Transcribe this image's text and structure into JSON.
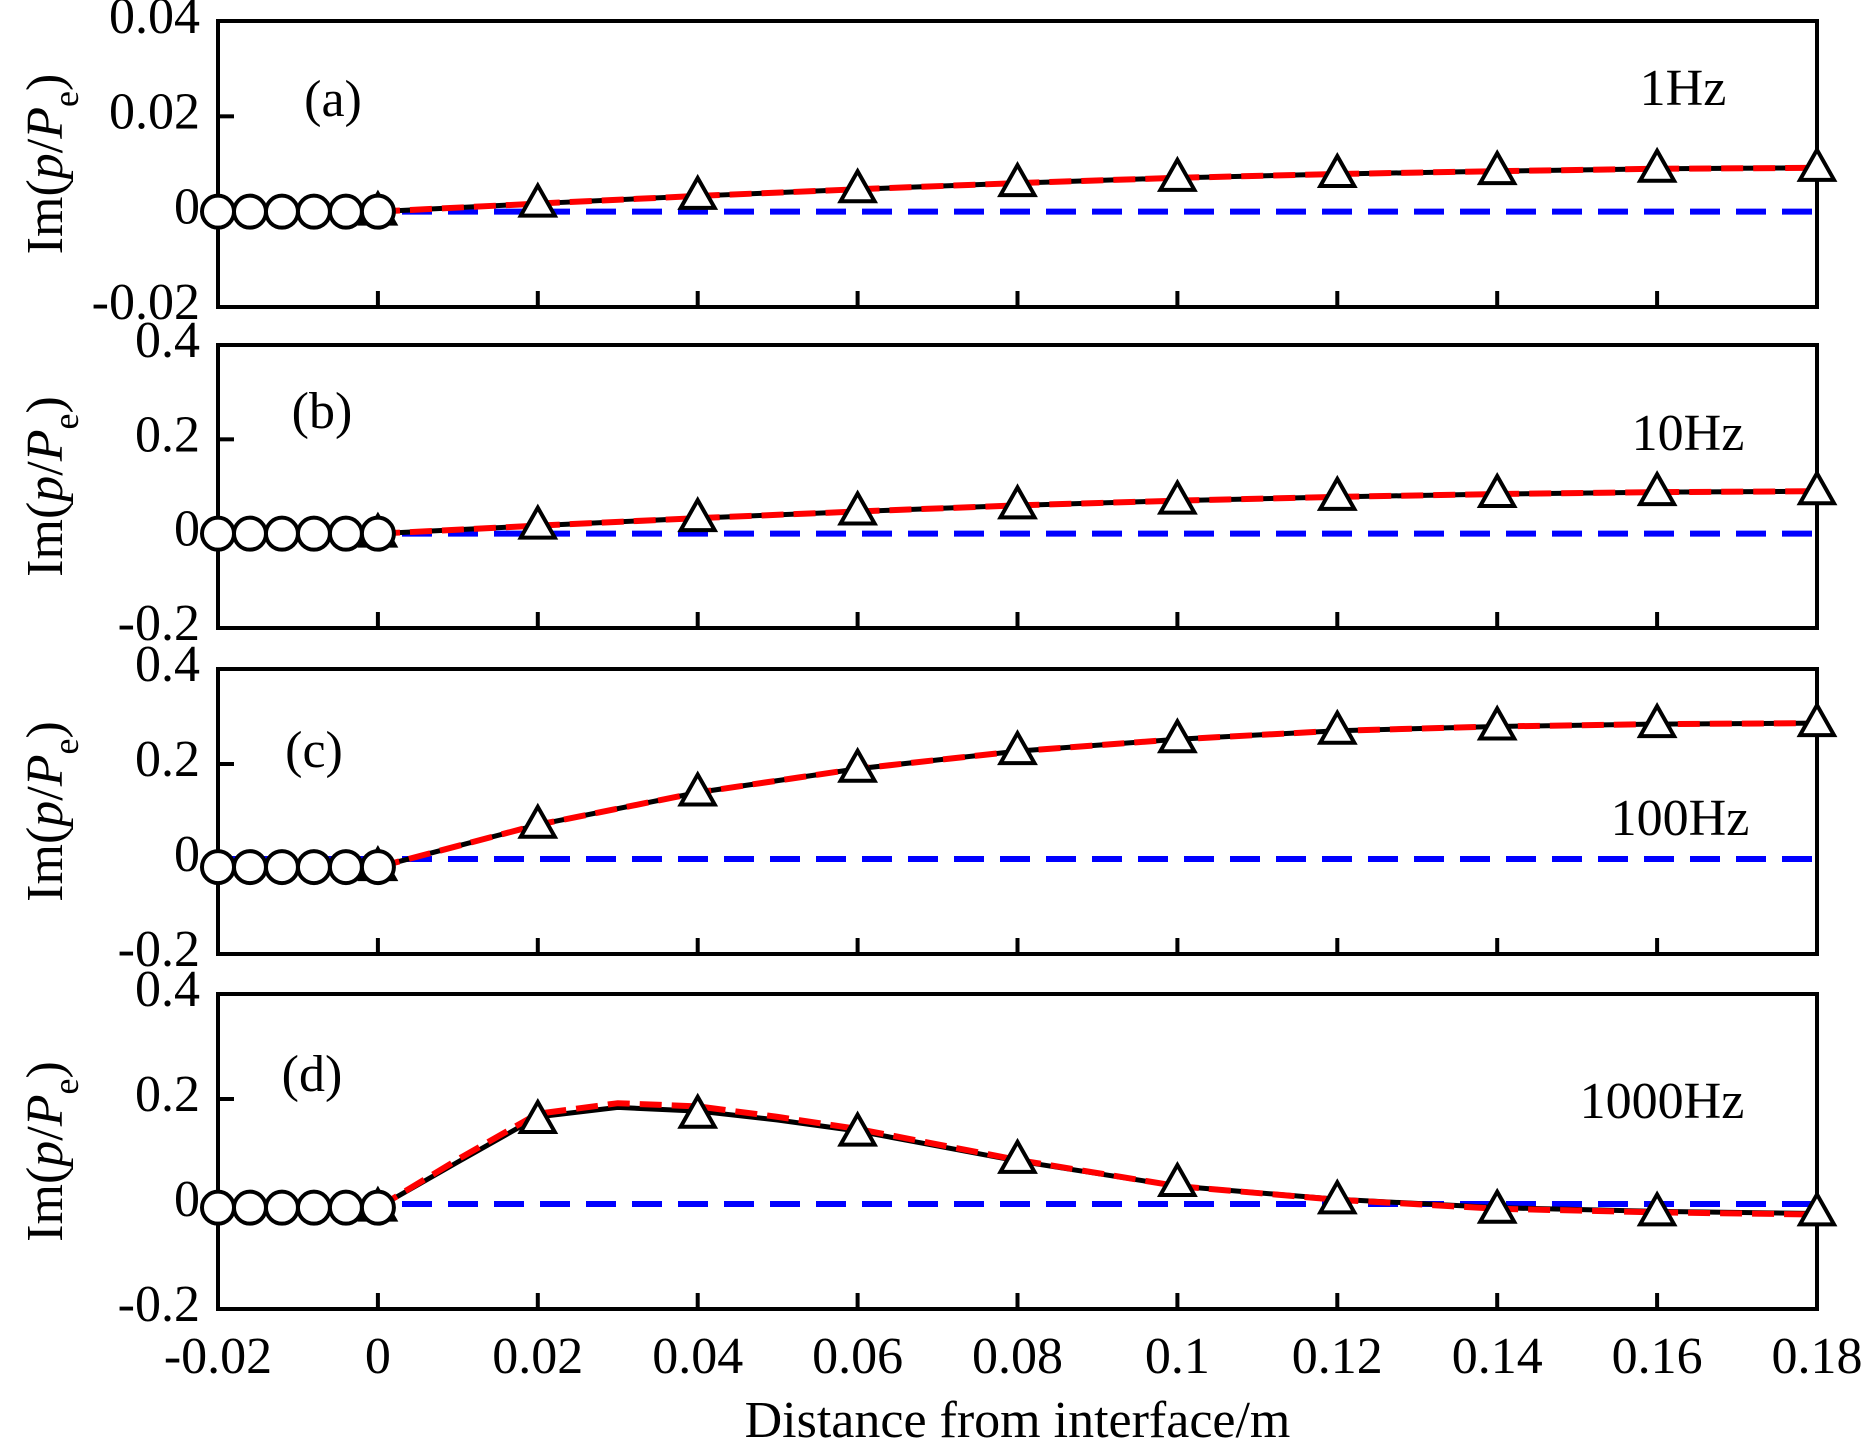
{
  "chart_data": [
    {
      "type": "line",
      "annotation": "(a)",
      "frequency": "1Hz",
      "ylabel_parts": [
        "Im(",
        "p",
        "/",
        "P",
        "e",
        ")"
      ],
      "xlim": [
        -0.02,
        0.18
      ],
      "xticks": [
        -0.02,
        0,
        0.02,
        0.04,
        0.06,
        0.08,
        0.1,
        0.12,
        0.14,
        0.16,
        0.18
      ],
      "ylim": [
        -0.02,
        0.04
      ],
      "yticks": [
        -0.02,
        0,
        0.02,
        0.04
      ],
      "series": [
        {
          "color": "#0000ff",
          "style": "dashed",
          "x": [
            -0.02,
            0.18
          ],
          "values": [
            0,
            0
          ]
        },
        {
          "color": "#000000",
          "style": "solid",
          "x": [
            -0.02,
            0,
            0.02,
            0.04,
            0.06,
            0.08,
            0.1,
            0.12,
            0.14,
            0.16,
            0.18
          ],
          "values": [
            0,
            0,
            0.0017,
            0.0033,
            0.0047,
            0.006,
            0.0071,
            0.0079,
            0.0085,
            0.009,
            0.0092
          ]
        },
        {
          "color": "#ff0000",
          "style": "dashed",
          "x": [
            -0.02,
            0,
            0.02,
            0.04,
            0.06,
            0.08,
            0.1,
            0.12,
            0.14,
            0.16,
            0.18
          ],
          "values": [
            0,
            0,
            0.0017,
            0.0033,
            0.0047,
            0.006,
            0.0071,
            0.0079,
            0.0085,
            0.009,
            0.0092
          ]
        },
        {
          "color": "#000000",
          "style": "markers",
          "marker": "triangle",
          "x": [
            0,
            0.02,
            0.04,
            0.06,
            0.08,
            0.1,
            0.12,
            0.14,
            0.16,
            0.18
          ],
          "values": [
            0,
            0.0017,
            0.0033,
            0.0047,
            0.006,
            0.0071,
            0.0079,
            0.0085,
            0.009,
            0.0092
          ]
        },
        {
          "color": "#000000",
          "style": "markers",
          "marker": "circle",
          "x": [
            -0.02,
            -0.016,
            -0.012,
            -0.008,
            -0.004,
            0
          ],
          "values": [
            0,
            0,
            0,
            0,
            0,
            0
          ]
        }
      ]
    },
    {
      "type": "line",
      "annotation": "(b)",
      "frequency": "10Hz",
      "ylabel_parts": [
        "Im(",
        "p",
        "/",
        "P",
        "e",
        ")"
      ],
      "xlim": [
        -0.02,
        0.18
      ],
      "xticks": [
        -0.02,
        0,
        0.02,
        0.04,
        0.06,
        0.08,
        0.1,
        0.12,
        0.14,
        0.16,
        0.18
      ],
      "ylim": [
        -0.2,
        0.4
      ],
      "yticks": [
        -0.2,
        0,
        0.2,
        0.4
      ],
      "series": [
        {
          "color": "#0000ff",
          "style": "dashed",
          "x": [
            -0.02,
            0.18
          ],
          "values": [
            0,
            0
          ]
        },
        {
          "color": "#000000",
          "style": "solid",
          "x": [
            -0.02,
            0,
            0.02,
            0.04,
            0.06,
            0.08,
            0.1,
            0.12,
            0.14,
            0.16,
            0.18
          ],
          "values": [
            0,
            0,
            0.017,
            0.033,
            0.047,
            0.06,
            0.07,
            0.078,
            0.084,
            0.088,
            0.09
          ]
        },
        {
          "color": "#ff0000",
          "style": "dashed",
          "x": [
            -0.02,
            0,
            0.02,
            0.04,
            0.06,
            0.08,
            0.1,
            0.12,
            0.14,
            0.16,
            0.18
          ],
          "values": [
            0,
            0,
            0.017,
            0.033,
            0.047,
            0.06,
            0.07,
            0.078,
            0.084,
            0.088,
            0.09
          ]
        },
        {
          "color": "#000000",
          "style": "markers",
          "marker": "triangle",
          "x": [
            0,
            0.02,
            0.04,
            0.06,
            0.08,
            0.1,
            0.12,
            0.14,
            0.16,
            0.18
          ],
          "values": [
            0,
            0.017,
            0.033,
            0.047,
            0.06,
            0.07,
            0.078,
            0.084,
            0.088,
            0.09
          ]
        },
        {
          "color": "#000000",
          "style": "markers",
          "marker": "circle",
          "x": [
            -0.02,
            -0.016,
            -0.012,
            -0.008,
            -0.004,
            0
          ],
          "values": [
            0,
            0,
            0,
            0,
            0,
            0
          ]
        }
      ]
    },
    {
      "type": "line",
      "annotation": "(c)",
      "frequency": "100Hz",
      "ylabel_parts": [
        "Im(",
        "p",
        "/",
        "P",
        "e",
        ")"
      ],
      "xlim": [
        -0.02,
        0.18
      ],
      "xticks": [
        -0.02,
        0,
        0.02,
        0.04,
        0.06,
        0.08,
        0.1,
        0.12,
        0.14,
        0.16,
        0.18
      ],
      "ylim": [
        -0.2,
        0.4
      ],
      "yticks": [
        -0.2,
        0,
        0.2,
        0.4
      ],
      "series": [
        {
          "color": "#0000ff",
          "style": "dashed",
          "x": [
            -0.02,
            0.18
          ],
          "values": [
            0,
            0
          ]
        },
        {
          "color": "#000000",
          "style": "solid",
          "x": [
            -0.02,
            0,
            0.02,
            0.04,
            0.06,
            0.08,
            0.1,
            0.12,
            0.14,
            0.16,
            0.18
          ],
          "values": [
            -0.017,
            -0.017,
            0.072,
            0.14,
            0.19,
            0.227,
            0.252,
            0.27,
            0.279,
            0.284,
            0.286
          ]
        },
        {
          "color": "#ff0000",
          "style": "dashed",
          "x": [
            -0.02,
            0,
            0.02,
            0.04,
            0.06,
            0.08,
            0.1,
            0.12,
            0.14,
            0.16,
            0.18
          ],
          "values": [
            -0.017,
            -0.017,
            0.072,
            0.14,
            0.19,
            0.227,
            0.252,
            0.27,
            0.279,
            0.284,
            0.286
          ]
        },
        {
          "color": "#000000",
          "style": "markers",
          "marker": "triangle",
          "x": [
            0,
            0.02,
            0.04,
            0.06,
            0.08,
            0.1,
            0.12,
            0.14,
            0.16,
            0.18
          ],
          "values": [
            -0.017,
            0.072,
            0.14,
            0.19,
            0.227,
            0.252,
            0.27,
            0.279,
            0.284,
            0.286
          ]
        },
        {
          "color": "#000000",
          "style": "markers",
          "marker": "circle",
          "x": [
            -0.02,
            -0.016,
            -0.012,
            -0.008,
            -0.004,
            0
          ],
          "values": [
            -0.017,
            -0.017,
            -0.017,
            -0.017,
            -0.017,
            -0.017
          ]
        }
      ]
    },
    {
      "type": "line",
      "annotation": "(d)",
      "frequency": "1000Hz",
      "ylabel_parts": [
        "Im(",
        "p",
        "/",
        "P",
        "e",
        ")"
      ],
      "xlabel": "Distance from interface/m",
      "show_xtick_labels": true,
      "xlim": [
        -0.02,
        0.18
      ],
      "xticks": [
        -0.02,
        0,
        0.02,
        0.04,
        0.06,
        0.08,
        0.1,
        0.12,
        0.14,
        0.16,
        0.18
      ],
      "ylim": [
        -0.2,
        0.4
      ],
      "yticks": [
        -0.2,
        0,
        0.2,
        0.4
      ],
      "series": [
        {
          "color": "#0000ff",
          "style": "dashed",
          "x": [
            -0.02,
            0.18
          ],
          "values": [
            0,
            0
          ]
        },
        {
          "color": "#000000",
          "style": "solid",
          "x": [
            -0.02,
            0,
            0.01,
            0.02,
            0.03,
            0.04,
            0.05,
            0.06,
            0.08,
            0.1,
            0.12,
            0.14,
            0.16,
            0.18
          ],
          "values": [
            -0.007,
            -0.007,
            0.08,
            0.166,
            0.184,
            0.177,
            0.16,
            0.139,
            0.082,
            0.034,
            0.009,
            -0.007,
            -0.014,
            -0.018
          ]
        },
        {
          "color": "#ff0000",
          "style": "dashed",
          "x": [
            -0.02,
            0,
            0.01,
            0.02,
            0.03,
            0.04,
            0.05,
            0.06,
            0.08,
            0.1,
            0.12,
            0.14,
            0.16,
            0.18
          ],
          "values": [
            -0.007,
            -0.007,
            0.085,
            0.172,
            0.192,
            0.186,
            0.166,
            0.143,
            0.084,
            0.034,
            0.008,
            -0.009,
            -0.016,
            -0.02
          ]
        },
        {
          "color": "#000000",
          "style": "markers",
          "marker": "triangle",
          "x": [
            0,
            0.02,
            0.04,
            0.06,
            0.08,
            0.1,
            0.12,
            0.14,
            0.16,
            0.18
          ],
          "values": [
            -0.007,
            0.16,
            0.17,
            0.136,
            0.084,
            0.04,
            0.007,
            -0.011,
            -0.016,
            -0.016
          ]
        },
        {
          "color": "#000000",
          "style": "markers",
          "marker": "circle",
          "x": [
            -0.02,
            -0.016,
            -0.012,
            -0.008,
            -0.004,
            0
          ],
          "values": [
            -0.007,
            -0.007,
            -0.007,
            -0.007,
            -0.007,
            -0.007
          ]
        }
      ]
    }
  ]
}
